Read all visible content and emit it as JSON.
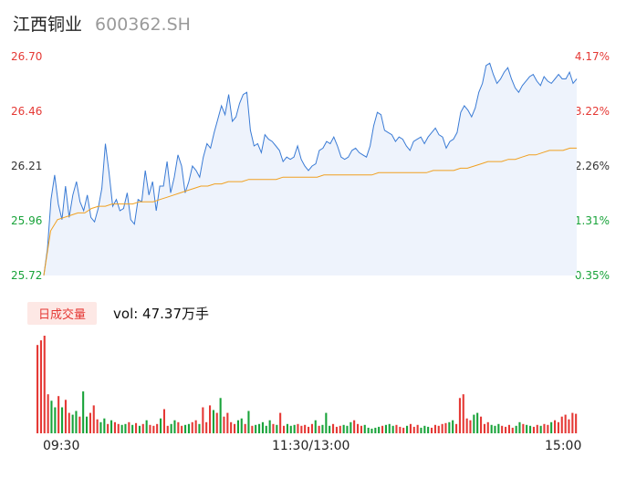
{
  "header": {
    "stock_name": "江西铜业",
    "stock_code": "600362.SH"
  },
  "colors": {
    "up": "#e53935",
    "down": "#19a33a",
    "price_line": "#3a7bd5",
    "price_fill": "#eef3fc",
    "avg_line": "#f0a020",
    "badge_bg": "#fde8e5"
  },
  "chart_data": [
    {
      "type": "line",
      "y_left_ticks": [
        "26.70",
        "26.46",
        "26.21",
        "25.96",
        "25.72"
      ],
      "y_right_ticks": [
        "4.17%",
        "3.22%",
        "2.26%",
        "1.31%",
        "0.35%"
      ],
      "ylim": [
        25.72,
        26.7
      ],
      "x_tick_labels": [
        "09:30",
        "11:30/13:00",
        "15:00"
      ],
      "series": [
        {
          "values": [
            25.72,
            25.84,
            26.06,
            26.17,
            26.04,
            25.97,
            26.12,
            25.98,
            26.08,
            26.14,
            26.05,
            26.01,
            26.08,
            25.98,
            25.96,
            26.02,
            26.11,
            26.31,
            26.18,
            26.03,
            26.06,
            26.01,
            26.02,
            26.09,
            25.97,
            25.95,
            26.06,
            26.05,
            26.19,
            26.08,
            26.14,
            26.01,
            26.12,
            26.12,
            26.23,
            26.09,
            26.16,
            26.26,
            26.21,
            26.09,
            26.14,
            26.21,
            26.19,
            26.16,
            26.25,
            26.31,
            26.29,
            26.36,
            26.42,
            26.48,
            26.44,
            26.53,
            26.41,
            26.43,
            26.49,
            26.53,
            26.54,
            26.37,
            26.3,
            26.31,
            26.27,
            26.35,
            26.33,
            26.32,
            26.3,
            26.28,
            26.23,
            26.25,
            26.24,
            26.25,
            26.3,
            26.24,
            26.21,
            26.19,
            26.21,
            26.22,
            26.28,
            26.29,
            26.32,
            26.31,
            26.34,
            26.3,
            26.25,
            26.24,
            26.25,
            26.28,
            26.29,
            26.27,
            26.26,
            26.25,
            26.3,
            26.39,
            26.45,
            26.44,
            26.37,
            26.36,
            26.35,
            26.32,
            26.34,
            26.33,
            26.3,
            26.28,
            26.32,
            26.33,
            26.34,
            26.31,
            26.34,
            26.36,
            26.38,
            26.35,
            26.34,
            26.29,
            26.32,
            26.33,
            26.36,
            26.45,
            26.48,
            26.46,
            26.43,
            26.47,
            26.54,
            26.58,
            26.66,
            26.67,
            26.62,
            26.58,
            26.6,
            26.63,
            26.65,
            26.6,
            26.56,
            26.54,
            26.57,
            26.59,
            26.61,
            26.62,
            26.59,
            26.57,
            26.61,
            26.59,
            26.58,
            26.6,
            26.62,
            26.6,
            26.6,
            26.63,
            26.58,
            26.6
          ],
          "color": "#3a7bd5"
        },
        {
          "values": [
            25.72,
            25.92,
            25.97,
            25.98,
            25.99,
            26.0,
            26.0,
            26.02,
            26.03,
            26.03,
            26.04,
            26.04,
            26.04,
            26.04,
            26.05,
            26.05,
            26.05,
            26.06,
            26.07,
            26.08,
            26.09,
            26.1,
            26.11,
            26.12,
            26.12,
            26.13,
            26.13,
            26.14,
            26.14,
            26.14,
            26.15,
            26.15,
            26.15,
            26.15,
            26.15,
            26.16,
            26.16,
            26.16,
            26.16,
            26.16,
            26.16,
            26.17,
            26.17,
            26.17,
            26.17,
            26.17,
            26.17,
            26.17,
            26.17,
            26.18,
            26.18,
            26.18,
            26.18,
            26.18,
            26.18,
            26.18,
            26.18,
            26.19,
            26.19,
            26.19,
            26.19,
            26.2,
            26.2,
            26.21,
            26.22,
            26.23,
            26.23,
            26.23,
            26.24,
            26.24,
            26.25,
            26.26,
            26.26,
            26.27,
            26.28,
            26.28,
            26.28,
            26.29,
            26.29
          ],
          "color": "#f0a020"
        }
      ]
    },
    {
      "type": "bar",
      "title": "日成交量",
      "annotation": "vol: 47.37万手",
      "values": [
        95,
        100,
        105,
        42,
        35,
        28,
        40,
        28,
        36,
        22,
        20,
        24,
        18,
        45,
        18,
        22,
        30,
        15,
        12,
        16,
        10,
        14,
        12,
        10,
        9,
        10,
        12,
        9,
        11,
        8,
        10,
        14,
        9,
        8,
        10,
        16,
        26,
        8,
        10,
        14,
        12,
        8,
        9,
        10,
        12,
        14,
        10,
        28,
        12,
        30,
        25,
        22,
        38,
        18,
        22,
        12,
        10,
        14,
        16,
        10,
        24,
        8,
        9,
        10,
        12,
        8,
        14,
        10,
        9,
        22,
        8,
        10,
        8,
        9,
        10,
        8,
        9,
        7,
        10,
        14,
        8,
        9,
        22,
        8,
        10,
        7,
        8,
        9,
        8,
        12,
        14,
        10,
        8,
        9,
        6,
        5,
        6,
        7,
        8,
        9,
        10,
        8,
        9,
        7,
        6,
        8,
        10,
        7,
        9,
        6,
        8,
        7,
        6,
        9,
        8,
        10,
        11,
        12,
        14,
        10,
        38,
        42,
        16,
        14,
        20,
        22,
        18,
        10,
        12,
        9,
        8,
        10,
        8,
        7,
        9,
        6,
        8,
        12,
        10,
        9,
        8,
        7,
        9,
        8,
        10,
        9,
        12,
        14,
        12,
        18,
        20,
        15,
        22,
        21
      ],
      "colors_pattern": "up/down per bar"
    }
  ]
}
